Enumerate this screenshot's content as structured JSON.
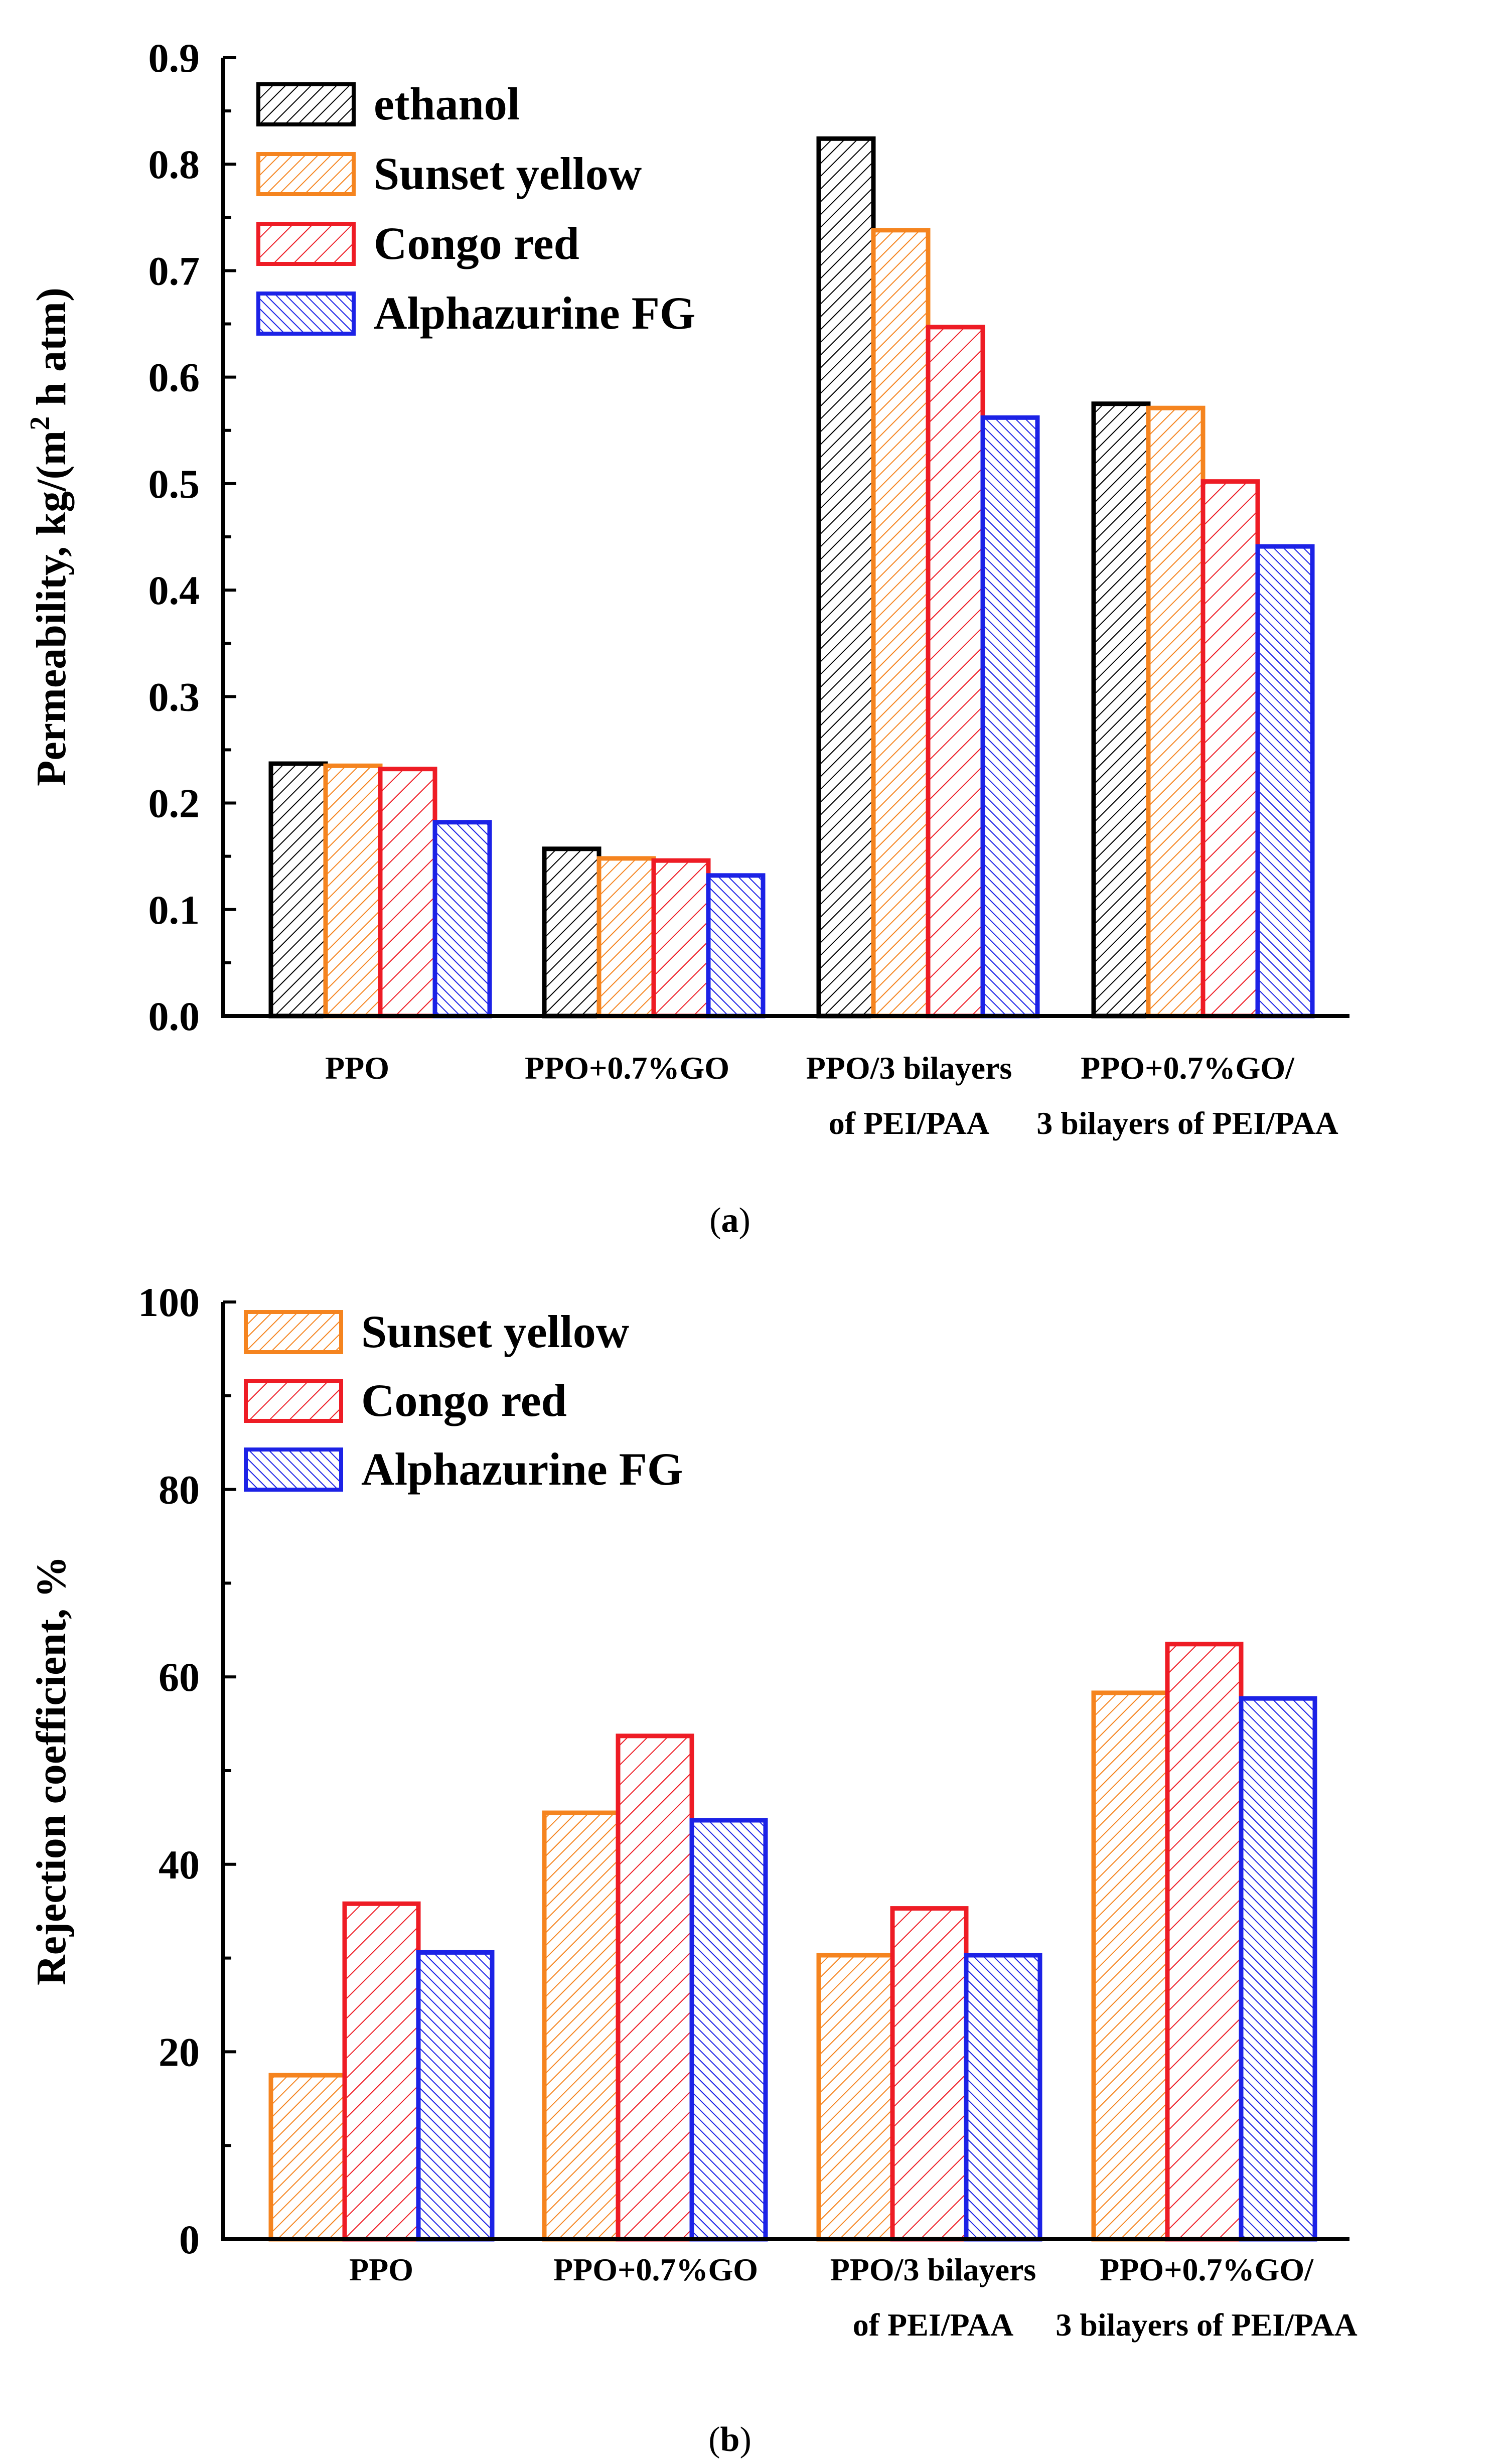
{
  "colors": {
    "ethanol": "#000000",
    "Sunset yellow": "#f5841f",
    "Congo red": "#ee1c25",
    "Alphazurine FG": "#1c22e6"
  },
  "panel_labels": {
    "a": "a",
    "b": "b"
  },
  "chart_data": [
    {
      "id": "a",
      "type": "bar",
      "title": "",
      "xlabel": "",
      "ylabel": "Permeability, kg/(m2 h atm)",
      "ylabel_parts": {
        "before": "Permeability, kg/(m",
        "sup": "2",
        "after": " h atm)"
      },
      "ylim": [
        0,
        0.9
      ],
      "yticks": [
        "0.0",
        "0.1",
        "0.2",
        "0.3",
        "0.4",
        "0.5",
        "0.6",
        "0.7",
        "0.8",
        "0.9"
      ],
      "legend_position": "top-left",
      "categories": [
        [
          "PPO"
        ],
        [
          "PPO+0.7%GO"
        ],
        [
          "PPO/3 bilayers",
          "of PEI/PAA"
        ],
        [
          "PPO+0.7%GO/",
          "3 bilayers of PEI/PAA"
        ]
      ],
      "series": [
        {
          "name": "ethanol",
          "values": [
            0.237,
            0.157,
            0.824,
            0.575
          ]
        },
        {
          "name": "Sunset yellow",
          "values": [
            0.235,
            0.148,
            0.738,
            0.571
          ]
        },
        {
          "name": "Congo red",
          "values": [
            0.232,
            0.146,
            0.647,
            0.502
          ]
        },
        {
          "name": "Alphazurine FG",
          "values": [
            0.182,
            0.132,
            0.562,
            0.441
          ]
        }
      ]
    },
    {
      "id": "b",
      "type": "bar",
      "title": "",
      "xlabel": "",
      "ylabel": "Rejection coefficient, %",
      "ylim": [
        0,
        100
      ],
      "yticks": [
        "0",
        "20",
        "40",
        "60",
        "80",
        "100"
      ],
      "legend_position": "top-left",
      "categories": [
        [
          "PPO"
        ],
        [
          "PPO+0.7%GO"
        ],
        [
          "PPO/3 bilayers",
          "of PEI/PAA"
        ],
        [
          "PPO+0.7%GO/",
          "3 bilayers of PEI/PAA"
        ]
      ],
      "series": [
        {
          "name": "Sunset yellow",
          "values": [
            17.5,
            45.5,
            30.3,
            58.3
          ]
        },
        {
          "name": "Congo red",
          "values": [
            35.8,
            53.7,
            35.3,
            63.5
          ]
        },
        {
          "name": "Alphazurine FG",
          "values": [
            30.6,
            44.7,
            30.3,
            57.7
          ]
        }
      ]
    }
  ]
}
